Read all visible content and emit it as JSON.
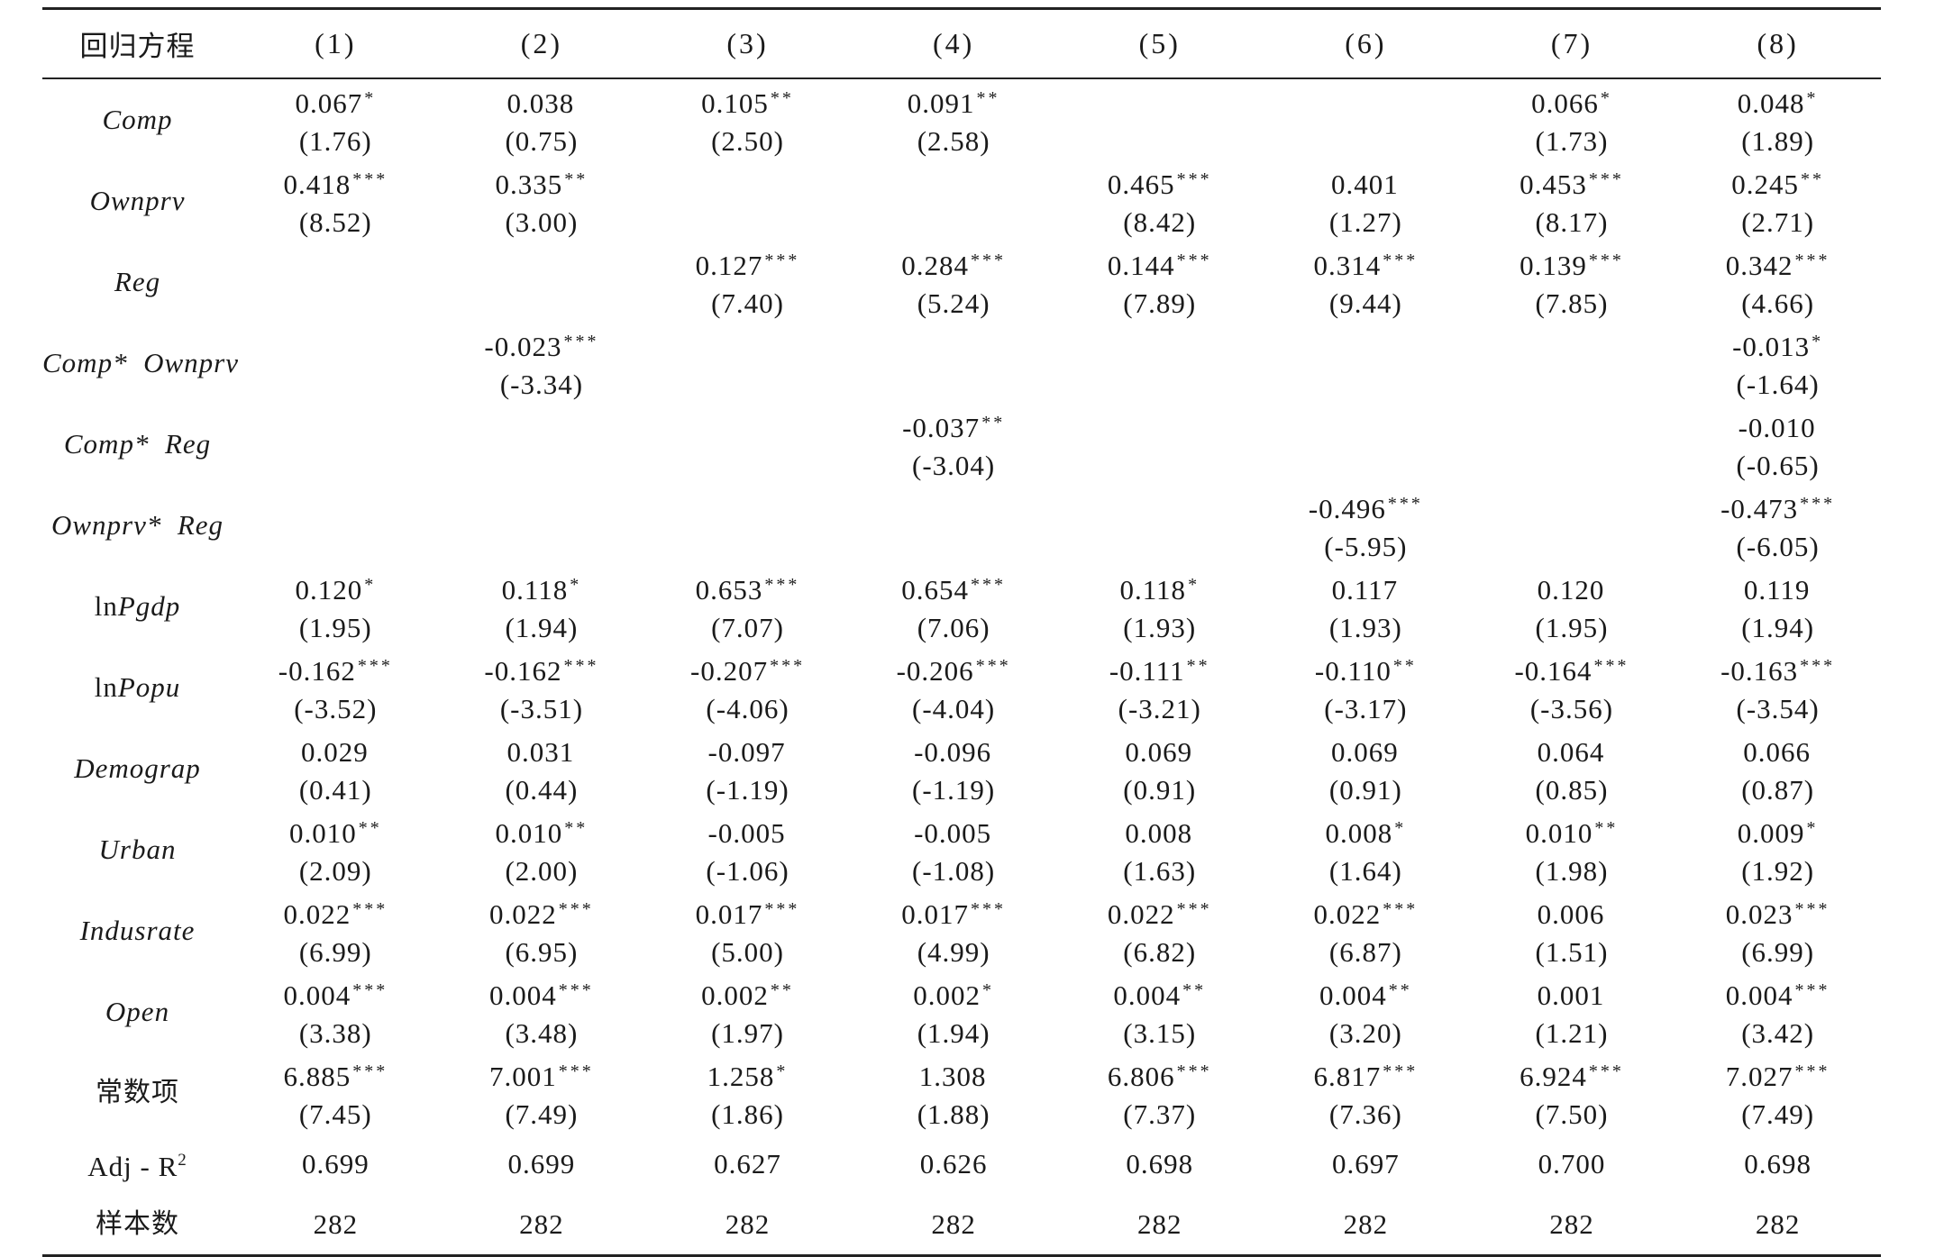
{
  "table": {
    "header": {
      "label": "回归方程",
      "columns": [
        "(1)",
        "(2)",
        "(3)",
        "(4)",
        "(5)",
        "(6)",
        "(7)",
        "(8)"
      ]
    },
    "rows": [
      {
        "label": "Comp",
        "cells": [
          {
            "coef": "0.067",
            "stars": "*",
            "t": "(1.76)"
          },
          {
            "coef": "0.038",
            "stars": "",
            "t": "(0.75)"
          },
          {
            "coef": "0.105",
            "stars": "**",
            "t": "(2.50)"
          },
          {
            "coef": "0.091",
            "stars": "**",
            "t": "(2.58)"
          },
          {
            "coef": "",
            "stars": "",
            "t": ""
          },
          {
            "coef": "",
            "stars": "",
            "t": ""
          },
          {
            "coef": "0.066",
            "stars": "*",
            "t": "(1.73)"
          },
          {
            "coef": "0.048",
            "stars": "*",
            "t": "(1.89)"
          }
        ]
      },
      {
        "label": "Ownprv",
        "cells": [
          {
            "coef": "0.418",
            "stars": "***",
            "t": "(8.52)"
          },
          {
            "coef": "0.335",
            "stars": "**",
            "t": "(3.00)"
          },
          {
            "coef": "",
            "stars": "",
            "t": ""
          },
          {
            "coef": "",
            "stars": "",
            "t": ""
          },
          {
            "coef": "0.465",
            "stars": "***",
            "t": "(8.42)"
          },
          {
            "coef": "0.401",
            "stars": "",
            "t": "(1.27)"
          },
          {
            "coef": "0.453",
            "stars": "***",
            "t": "(8.17)"
          },
          {
            "coef": "0.245",
            "stars": "**",
            "t": "(2.71)"
          }
        ]
      },
      {
        "label": "Reg",
        "cells": [
          {
            "coef": "",
            "stars": "",
            "t": ""
          },
          {
            "coef": "",
            "stars": "",
            "t": ""
          },
          {
            "coef": "0.127",
            "stars": "***",
            "t": "(7.40)"
          },
          {
            "coef": "0.284",
            "stars": "***",
            "t": "(5.24)"
          },
          {
            "coef": "0.144",
            "stars": "***",
            "t": "(7.89)"
          },
          {
            "coef": "0.314",
            "stars": "***",
            "t": "(9.44)"
          },
          {
            "coef": "0.139",
            "stars": "***",
            "t": "(7.85)"
          },
          {
            "coef": "0.342",
            "stars": "***",
            "t": "(4.66)"
          }
        ]
      },
      {
        "label": "Comp*  Ownprv",
        "cells": [
          {
            "coef": "",
            "stars": "",
            "t": ""
          },
          {
            "coef": "-0.023",
            "stars": "***",
            "t": "(-3.34)"
          },
          {
            "coef": "",
            "stars": "",
            "t": ""
          },
          {
            "coef": "",
            "stars": "",
            "t": ""
          },
          {
            "coef": "",
            "stars": "",
            "t": ""
          },
          {
            "coef": "",
            "stars": "",
            "t": ""
          },
          {
            "coef": "",
            "stars": "",
            "t": ""
          },
          {
            "coef": "-0.013",
            "stars": "*",
            "t": "(-1.64)"
          }
        ]
      },
      {
        "label": "Comp*  Reg",
        "cells": [
          {
            "coef": "",
            "stars": "",
            "t": ""
          },
          {
            "coef": "",
            "stars": "",
            "t": ""
          },
          {
            "coef": "",
            "stars": "",
            "t": ""
          },
          {
            "coef": "-0.037",
            "stars": "**",
            "t": "(-3.04)"
          },
          {
            "coef": "",
            "stars": "",
            "t": ""
          },
          {
            "coef": "",
            "stars": "",
            "t": ""
          },
          {
            "coef": "",
            "stars": "",
            "t": ""
          },
          {
            "coef": "-0.010",
            "stars": "",
            "t": "(-0.65)"
          }
        ]
      },
      {
        "label": "Ownprv*  Reg",
        "cells": [
          {
            "coef": "",
            "stars": "",
            "t": ""
          },
          {
            "coef": "",
            "stars": "",
            "t": ""
          },
          {
            "coef": "",
            "stars": "",
            "t": ""
          },
          {
            "coef": "",
            "stars": "",
            "t": ""
          },
          {
            "coef": "",
            "stars": "",
            "t": ""
          },
          {
            "coef": "-0.496",
            "stars": "***",
            "t": "(-5.95)"
          },
          {
            "coef": "",
            "stars": "",
            "t": ""
          },
          {
            "coef": "-0.473",
            "stars": "***",
            "t": "(-6.05)"
          }
        ]
      },
      {
        "label_prefix": "ln",
        "label": "Pgdp",
        "cells": [
          {
            "coef": "0.120",
            "stars": "*",
            "t": "(1.95)"
          },
          {
            "coef": "0.118",
            "stars": "*",
            "t": "(1.94)"
          },
          {
            "coef": "0.653",
            "stars": "***",
            "t": "(7.07)"
          },
          {
            "coef": "0.654",
            "stars": "***",
            "t": "(7.06)"
          },
          {
            "coef": "0.118",
            "stars": "*",
            "t": "(1.93)"
          },
          {
            "coef": "0.117",
            "stars": "",
            "t": "(1.93)"
          },
          {
            "coef": "0.120",
            "stars": "",
            "t": "(1.95)"
          },
          {
            "coef": "0.119",
            "stars": "",
            "t": "(1.94)"
          }
        ]
      },
      {
        "label_prefix": "ln",
        "label": "Popu",
        "cells": [
          {
            "coef": "-0.162",
            "stars": "***",
            "t": "(-3.52)"
          },
          {
            "coef": "-0.162",
            "stars": "***",
            "t": "(-3.51)"
          },
          {
            "coef": "-0.207",
            "stars": "***",
            "t": "(-4.06)"
          },
          {
            "coef": "-0.206",
            "stars": "***",
            "t": "(-4.04)"
          },
          {
            "coef": "-0.111",
            "stars": "**",
            "t": "(-3.21)"
          },
          {
            "coef": "-0.110",
            "stars": "**",
            "t": "(-3.17)"
          },
          {
            "coef": "-0.164",
            "stars": "***",
            "t": "(-3.56)"
          },
          {
            "coef": "-0.163",
            "stars": "***",
            "t": "(-3.54)"
          }
        ]
      },
      {
        "label": "Demograp",
        "cells": [
          {
            "coef": "0.029",
            "stars": "",
            "t": "(0.41)"
          },
          {
            "coef": "0.031",
            "stars": "",
            "t": "(0.44)"
          },
          {
            "coef": "-0.097",
            "stars": "",
            "t": "(-1.19)"
          },
          {
            "coef": "-0.096",
            "stars": "",
            "t": "(-1.19)"
          },
          {
            "coef": "0.069",
            "stars": "",
            "t": "(0.91)"
          },
          {
            "coef": "0.069",
            "stars": "",
            "t": "(0.91)"
          },
          {
            "coef": "0.064",
            "stars": "",
            "t": "(0.85)"
          },
          {
            "coef": "0.066",
            "stars": "",
            "t": "(0.87)"
          }
        ]
      },
      {
        "label": "Urban",
        "cells": [
          {
            "coef": "0.010",
            "stars": "**",
            "t": "(2.09)"
          },
          {
            "coef": "0.010",
            "stars": "**",
            "t": "(2.00)"
          },
          {
            "coef": "-0.005",
            "stars": "",
            "t": "(-1.06)"
          },
          {
            "coef": "-0.005",
            "stars": "",
            "t": "(-1.08)"
          },
          {
            "coef": "0.008",
            "stars": "",
            "t": "(1.63)"
          },
          {
            "coef": "0.008",
            "stars": "*",
            "t": "(1.64)"
          },
          {
            "coef": "0.010",
            "stars": "**",
            "t": "(1.98)"
          },
          {
            "coef": "0.009",
            "stars": "*",
            "t": "(1.92)"
          }
        ]
      },
      {
        "label": "Indusrate",
        "cells": [
          {
            "coef": "0.022",
            "stars": "***",
            "t": "(6.99)"
          },
          {
            "coef": "0.022",
            "stars": "***",
            "t": "(6.95)"
          },
          {
            "coef": "0.017",
            "stars": "***",
            "t": "(5.00)"
          },
          {
            "coef": "0.017",
            "stars": "***",
            "t": "(4.99)"
          },
          {
            "coef": "0.022",
            "stars": "***",
            "t": "(6.82)"
          },
          {
            "coef": "0.022",
            "stars": "***",
            "t": "(6.87)"
          },
          {
            "coef": "0.006",
            "stars": "",
            "t": "(1.51)"
          },
          {
            "coef": "0.023",
            "stars": "***",
            "t": "(6.99)"
          }
        ]
      },
      {
        "label": "Open",
        "cells": [
          {
            "coef": "0.004",
            "stars": "***",
            "t": "(3.38)"
          },
          {
            "coef": "0.004",
            "stars": "***",
            "t": "(3.48)"
          },
          {
            "coef": "0.002",
            "stars": "**",
            "t": "(1.97)"
          },
          {
            "coef": "0.002",
            "stars": "*",
            "t": "(1.94)"
          },
          {
            "coef": "0.004",
            "stars": "**",
            "t": "(3.15)"
          },
          {
            "coef": "0.004",
            "stars": "**",
            "t": "(3.20)"
          },
          {
            "coef": "0.001",
            "stars": "",
            "t": "(1.21)"
          },
          {
            "coef": "0.004",
            "stars": "***",
            "t": "(3.42)"
          }
        ]
      },
      {
        "label": "常数项",
        "cjk": true,
        "cells": [
          {
            "coef": "6.885",
            "stars": "***",
            "t": "(7.45)"
          },
          {
            "coef": "7.001",
            "stars": "***",
            "t": "(7.49)"
          },
          {
            "coef": "1.258",
            "stars": "*",
            "t": "(1.86)"
          },
          {
            "coef": "1.308",
            "stars": "",
            "t": "(1.88)"
          },
          {
            "coef": "6.806",
            "stars": "***",
            "t": "(7.37)"
          },
          {
            "coef": "6.817",
            "stars": "***",
            "t": "(7.36)"
          },
          {
            "coef": "6.924",
            "stars": "***",
            "t": "(7.50)"
          },
          {
            "coef": "7.027",
            "stars": "***",
            "t": "(7.49)"
          }
        ]
      }
    ],
    "adj_r2": {
      "label_main": "Adj - R",
      "label_sup": "2",
      "values": [
        "0.699",
        "0.699",
        "0.627",
        "0.626",
        "0.698",
        "0.697",
        "0.700",
        "0.698"
      ]
    },
    "sample": {
      "label": "样本数",
      "values": [
        "282",
        "282",
        "282",
        "282",
        "282",
        "282",
        "282",
        "282"
      ]
    }
  }
}
